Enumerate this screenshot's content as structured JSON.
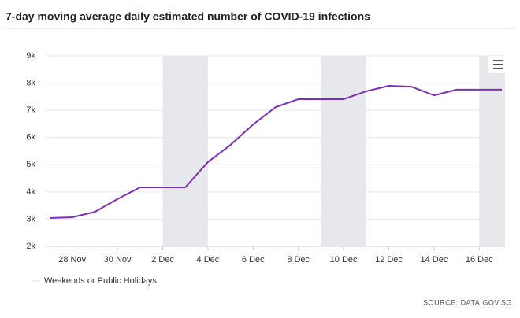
{
  "chart_data": {
    "type": "line",
    "title": "7-day moving average daily estimated number of COVID-19 infections",
    "categories": [
      null,
      "28 Nov",
      null,
      "30 Nov",
      null,
      "2 Dec",
      null,
      "4 Dec",
      null,
      "6 Dec",
      null,
      "8 Dec",
      null,
      "10 Dec",
      null,
      "12 Dec",
      null,
      "14 Dec",
      null,
      "16 Dec",
      null
    ],
    "series": [
      {
        "color": "#7b2fbe",
        "values": [
          3040,
          3070,
          3270,
          3740,
          4170,
          4170,
          4170,
          5100,
          5730,
          6480,
          7120,
          7410,
          7410,
          7410,
          7700,
          7900,
          7870,
          7550,
          7760,
          7760,
          7760
        ]
      }
    ],
    "ylim": [
      2000,
      9000
    ],
    "yticks": [
      {
        "value": 2000,
        "label": "2k"
      },
      {
        "value": 3000,
        "label": "3k"
      },
      {
        "value": 4000,
        "label": "4k"
      },
      {
        "value": 5000,
        "label": "5k"
      },
      {
        "value": 6000,
        "label": "6k"
      },
      {
        "value": 7000,
        "label": "7k"
      },
      {
        "value": 8000,
        "label": "8k"
      },
      {
        "value": 9000,
        "label": "9k"
      }
    ],
    "grid": true,
    "highlight_ranges": [
      [
        5,
        7
      ],
      [
        12,
        14
      ],
      [
        19,
        21
      ]
    ],
    "highlight_color": "#e6e8ec",
    "legend": {
      "name": "Weekends or Public Holidays"
    },
    "source": "SOURCE: DATA.GOV.SG"
  }
}
